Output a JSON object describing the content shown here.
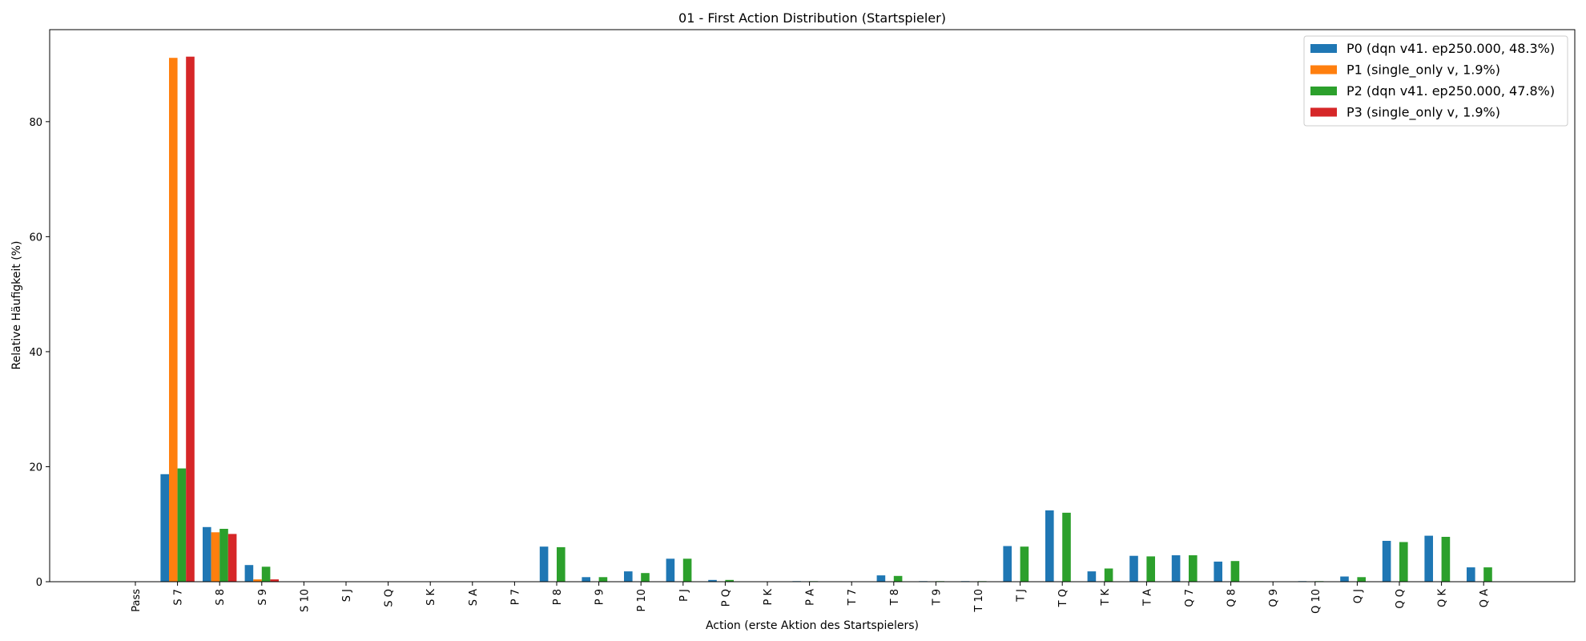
{
  "chart_data": {
    "type": "bar",
    "title": "01 - First Action Distribution (Startspieler)",
    "xlabel": "Action (erste Aktion des Startspielers)",
    "ylabel": "Relative Häufigkeit (%)",
    "ylim": [
      0,
      96
    ],
    "yticks": [
      0,
      20,
      40,
      60,
      80
    ],
    "grid": false,
    "legend_position": "top-right",
    "categories": [
      "Pass",
      "S 7",
      "S 8",
      "S 9",
      "S 10",
      "S J",
      "S Q",
      "S K",
      "S A",
      "P 7",
      "P 8",
      "P 9",
      "P 10",
      "P J",
      "P Q",
      "P K",
      "P A",
      "T 7",
      "T 8",
      "T 9",
      "T 10",
      "T J",
      "T Q",
      "T K",
      "T A",
      "Q 7",
      "Q 8",
      "Q 9",
      "Q 10",
      "Q J",
      "Q Q",
      "Q K",
      "Q A"
    ],
    "series": [
      {
        "name": "P0 (dqn v41. ep250.000, 48.3%)",
        "color": "#1f77b4",
        "values": [
          0,
          18.7,
          9.5,
          2.9,
          0,
          0,
          0,
          0,
          0,
          0,
          6.1,
          0.8,
          1.8,
          4.0,
          0.3,
          0,
          0.1,
          0,
          1.1,
          0.1,
          0.1,
          6.2,
          12.4,
          1.8,
          4.5,
          4.6,
          3.5,
          0,
          0.1,
          0.9,
          7.1,
          8.0,
          2.5
        ]
      },
      {
        "name": "P1 (single_only v, 1.9%)",
        "color": "#ff7f0e",
        "values": [
          0,
          91.1,
          8.6,
          0.4,
          0,
          0,
          0,
          0,
          0,
          0,
          0,
          0,
          0,
          0,
          0,
          0,
          0,
          0,
          0,
          0,
          0,
          0,
          0,
          0,
          0,
          0,
          0,
          0,
          0,
          0,
          0,
          0,
          0
        ]
      },
      {
        "name": "P2 (dqn v41. ep250.000, 47.8%)",
        "color": "#2ca02c",
        "values": [
          0,
          19.7,
          9.2,
          2.6,
          0,
          0,
          0,
          0,
          0,
          0,
          6.0,
          0.8,
          1.5,
          4.0,
          0.3,
          0,
          0.1,
          0,
          1.0,
          0.1,
          0.1,
          6.1,
          12.0,
          2.3,
          4.4,
          4.6,
          3.6,
          0,
          0.1,
          0.8,
          6.9,
          7.8,
          2.5
        ]
      },
      {
        "name": "P3 (single_only v, 1.9%)",
        "color": "#d62728",
        "values": [
          0,
          91.3,
          8.3,
          0.4,
          0,
          0,
          0,
          0,
          0,
          0,
          0,
          0,
          0,
          0,
          0,
          0,
          0,
          0,
          0,
          0,
          0,
          0,
          0,
          0,
          0,
          0,
          0,
          0,
          0,
          0,
          0,
          0,
          0
        ]
      }
    ]
  }
}
